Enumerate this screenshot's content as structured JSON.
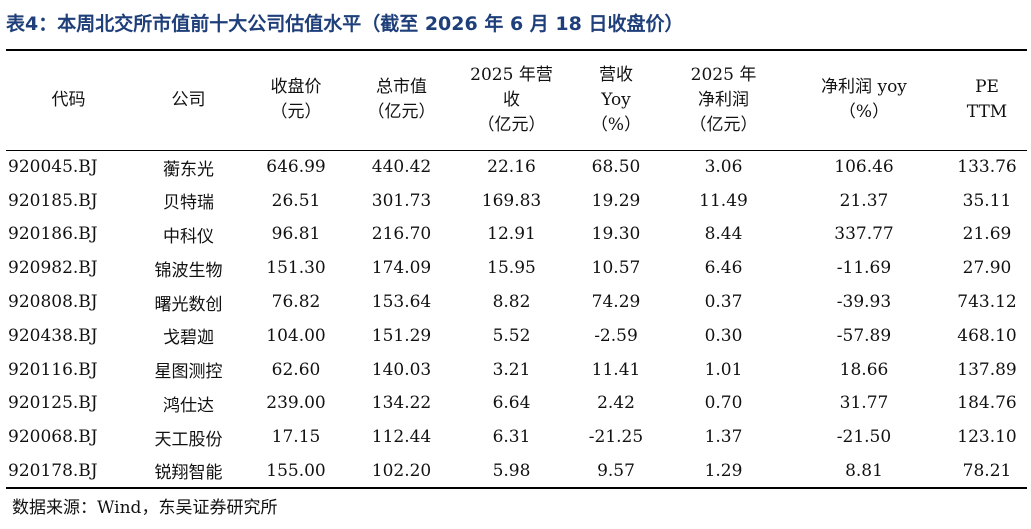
{
  "title": "表4：本周北交所市值前十大公司估值水平（截至 2026 年 6 月 18 日收盘价）",
  "headers": [
    [
      "代码"
    ],
    [
      "公司"
    ],
    [
      "收盘价",
      "（元）"
    ],
    [
      "总市值",
      "（亿元）"
    ],
    [
      "2025 年营",
      "收",
      "（亿元）"
    ],
    [
      "营收",
      "Yoy",
      "（%）"
    ],
    [
      "2025 年",
      "净利润",
      "（亿元）"
    ],
    [
      "净利润 yoy",
      "（%）"
    ],
    [
      "PE",
      "TTM"
    ]
  ],
  "rows": [
    [
      "920045.BJ",
      "蘅东光",
      "646.99",
      "440.42",
      "22.16",
      "68.50",
      "3.06",
      "106.46",
      "133.76"
    ],
    [
      "920185.BJ",
      "贝特瑞",
      "26.51",
      "301.73",
      "169.83",
      "19.29",
      "11.49",
      "21.37",
      "35.11"
    ],
    [
      "920186.BJ",
      "中科仪",
      "96.81",
      "216.70",
      "12.91",
      "19.30",
      "8.44",
      "337.77",
      "21.69"
    ],
    [
      "920982.BJ",
      "锦波生物",
      "151.30",
      "174.09",
      "15.95",
      "10.57",
      "6.46",
      "-11.69",
      "27.90"
    ],
    [
      "920808.BJ",
      "曙光数创",
      "76.82",
      "153.64",
      "8.82",
      "74.29",
      "0.37",
      "-39.93",
      "743.12"
    ],
    [
      "920438.BJ",
      "戈碧迦",
      "104.00",
      "151.29",
      "5.52",
      "-2.59",
      "0.30",
      "-57.89",
      "468.10"
    ],
    [
      "920116.BJ",
      "星图测控",
      "62.60",
      "140.03",
      "3.21",
      "11.41",
      "1.01",
      "18.66",
      "137.89"
    ],
    [
      "920125.BJ",
      "鸿仕达",
      "239.00",
      "134.22",
      "6.64",
      "2.42",
      "0.70",
      "31.77",
      "184.76"
    ],
    [
      "920068.BJ",
      "天工股份",
      "17.15",
      "112.44",
      "6.31",
      "-21.25",
      "1.37",
      "-21.50",
      "123.10"
    ],
    [
      "920178.BJ",
      "锐翔智能",
      "155.00",
      "102.20",
      "5.98",
      "9.57",
      "1.29",
      "8.81",
      "78.21"
    ]
  ],
  "source": "数据来源：Wind，东吴证券研究所",
  "colors": {
    "title": "#1f3f7a",
    "text": "#111111",
    "rule": "#000000"
  }
}
